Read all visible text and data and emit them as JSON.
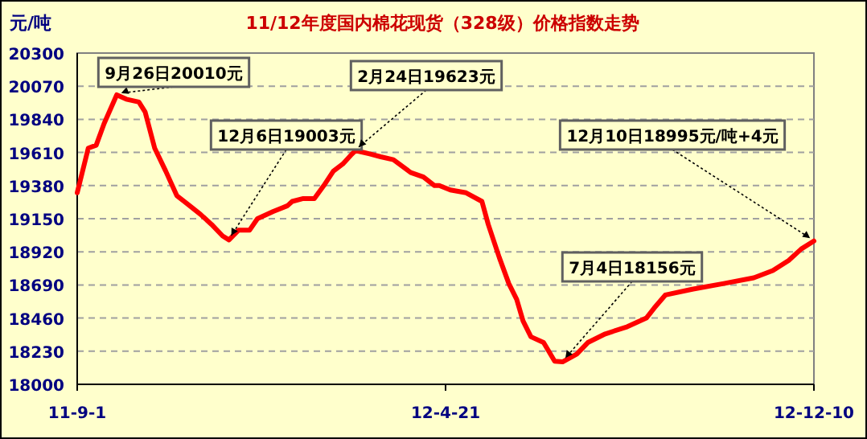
{
  "chart_data": {
    "type": "line",
    "title": "11/12年度国内棉花现货（328级）价格指数走势",
    "ylabel": "元/吨",
    "xlim": [
      "2011-09-01",
      "2012-12-10"
    ],
    "xticks": [
      {
        "value": "2011-09-01",
        "label": "11-9-1"
      },
      {
        "value": "2012-04-21",
        "label": "12-4-21"
      },
      {
        "value": "2012-12-10",
        "label": "12-12-10"
      }
    ],
    "ylim": [
      18000,
      20300
    ],
    "yticks": [
      18000,
      18230,
      18460,
      18690,
      18920,
      19150,
      19380,
      19610,
      19840,
      20070,
      20300
    ],
    "grid": "y",
    "marker": "none",
    "line_style": "solid",
    "annotations": [
      {
        "text": "9月26日20010元",
        "x": "2011-09-26",
        "y": 20010
      },
      {
        "text": "12月6日19003元",
        "x": "2011-12-06",
        "y": 19003
      },
      {
        "text": "2月24日19623元",
        "x": "2012-02-24",
        "y": 19623
      },
      {
        "text": "12月10日18995元/吨+4元",
        "x": "2012-12-10",
        "y": 18995
      },
      {
        "text": "7月4日18156元",
        "x": "2012-07-04",
        "y": 18156
      }
    ],
    "series": [
      {
        "color": "#ff0000",
        "x": [
          "2011-09-01",
          "2011-09-08",
          "2011-09-13",
          "2011-09-18",
          "2011-09-26",
          "2011-10-02",
          "2011-10-10",
          "2011-10-14",
          "2011-10-20",
          "2011-10-27",
          "2011-11-03",
          "2011-11-10",
          "2011-11-18",
          "2011-11-25",
          "2011-12-02",
          "2011-12-06",
          "2011-12-12",
          "2011-12-19",
          "2011-12-24",
          "2012-01-03",
          "2012-01-12",
          "2012-01-15",
          "2012-01-22",
          "2012-01-29",
          "2012-02-04",
          "2012-02-10",
          "2012-02-16",
          "2012-02-21",
          "2012-02-24",
          "2012-03-04",
          "2012-03-11",
          "2012-03-19",
          "2012-03-30",
          "2012-04-07",
          "2012-04-14",
          "2012-04-17",
          "2012-04-24",
          "2012-05-04",
          "2012-05-14",
          "2012-05-18",
          "2012-05-25",
          "2012-05-31",
          "2012-06-05",
          "2012-06-09",
          "2012-06-14",
          "2012-06-22",
          "2012-06-29",
          "2012-07-04",
          "2012-07-13",
          "2012-07-20",
          "2012-07-31",
          "2012-08-14",
          "2012-08-26",
          "2012-08-31",
          "2012-09-07",
          "2012-09-24",
          "2012-10-14",
          "2012-11-02",
          "2012-11-14",
          "2012-11-24",
          "2012-12-02",
          "2012-12-10"
        ],
        "values": [
          19330,
          19640,
          19660,
          19810,
          20010,
          19980,
          19960,
          19890,
          19640,
          19480,
          19310,
          19250,
          19180,
          19110,
          19030,
          19003,
          19070,
          19070,
          19150,
          19200,
          19240,
          19270,
          19290,
          19290,
          19380,
          19480,
          19530,
          19590,
          19623,
          19600,
          19580,
          19560,
          19470,
          19440,
          19380,
          19380,
          19350,
          19330,
          19270,
          19110,
          18880,
          18700,
          18590,
          18440,
          18330,
          18290,
          18160,
          18156,
          18210,
          18290,
          18350,
          18400,
          18460,
          18530,
          18620,
          18660,
          18700,
          18740,
          18790,
          18860,
          18940,
          18995
        ]
      }
    ]
  }
}
